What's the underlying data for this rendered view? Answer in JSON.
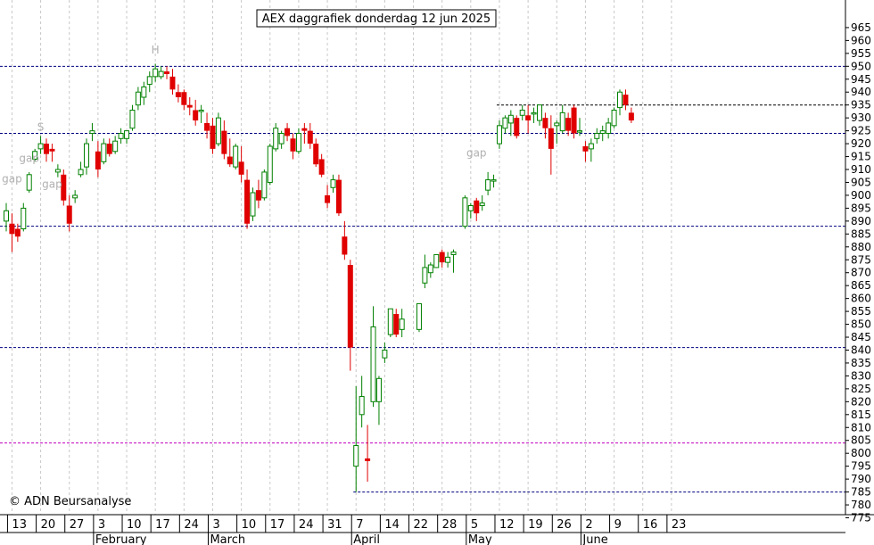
{
  "chart_data": {
    "type": "candlestick",
    "title": "AEX daggrafiek donderdag 12 jun 2025",
    "copyright": "© ADN Beursanalyse",
    "y_axis": {
      "min": 775,
      "max": 965,
      "ticks": [
        965,
        960,
        955,
        950,
        945,
        940,
        935,
        930,
        925,
        920,
        915,
        910,
        905,
        900,
        895,
        890,
        885,
        880,
        875,
        870,
        865,
        860,
        855,
        850,
        845,
        840,
        835,
        830,
        825,
        820,
        815,
        810,
        805,
        800,
        795,
        790,
        785,
        780,
        775
      ],
      "position": "right"
    },
    "x_axis": {
      "day_labels": [
        "13",
        "20",
        "27",
        "3",
        "10",
        "17",
        "24",
        "3",
        "10",
        "17",
        "24",
        "31",
        "7",
        "14",
        "22",
        "28",
        "5",
        "12",
        "19",
        "26",
        "2",
        "9",
        "16",
        "23"
      ],
      "month_labels": [
        "February",
        "March",
        "April",
        "May",
        "June"
      ]
    },
    "grid": "vertical dashed",
    "horizontal_levels": [
      {
        "value": 950,
        "color": "#000080",
        "style": "dashed",
        "span": "full"
      },
      {
        "value": 924,
        "color": "#000080",
        "style": "dashed",
        "span": "full"
      },
      {
        "value": 888,
        "color": "#000080",
        "style": "dashed",
        "span": "full"
      },
      {
        "value": 841,
        "color": "#000080",
        "style": "dashed",
        "span": "full"
      },
      {
        "value": 804,
        "color": "#c000c0",
        "style": "dashed",
        "span": "full"
      },
      {
        "value": 935,
        "color": "#000000",
        "style": "dashed",
        "span": "from 2025-05-12"
      },
      {
        "value": 785,
        "color": "#000080",
        "style": "dashed",
        "span": "from 2025-04-07"
      }
    ],
    "annotations": [
      {
        "text": "gap",
        "date": "2025-01-13",
        "value": 905
      },
      {
        "text": "gap",
        "date": "2025-01-16",
        "value": 913
      },
      {
        "text": "gap",
        "date": "2025-01-22",
        "value": 903
      },
      {
        "text": "S",
        "date": "2025-01-20",
        "value": 925
      },
      {
        "text": "H",
        "date": "2025-02-17",
        "value": 955
      },
      {
        "text": "gap",
        "date": "2025-05-06",
        "value": 915
      }
    ],
    "candles": [
      {
        "date": "2025-01-10",
        "open": 890,
        "high": 897,
        "low": 886,
        "close": 894
      },
      {
        "date": "2025-01-13",
        "open": 889,
        "high": 893,
        "low": 878,
        "close": 885
      },
      {
        "date": "2025-01-14",
        "open": 887,
        "high": 889,
        "low": 882,
        "close": 884
      },
      {
        "date": "2025-01-15",
        "open": 887,
        "high": 897,
        "low": 886,
        "close": 895
      },
      {
        "date": "2025-01-16",
        "open": 902,
        "high": 909,
        "low": 901,
        "close": 908
      },
      {
        "date": "2025-01-17",
        "open": 914,
        "high": 918,
        "low": 913,
        "close": 917
      },
      {
        "date": "2025-01-20",
        "open": 918,
        "high": 923,
        "low": 916,
        "close": 920
      },
      {
        "date": "2025-01-21",
        "open": 920,
        "high": 922,
        "low": 913,
        "close": 916
      },
      {
        "date": "2025-01-22",
        "open": 918,
        "high": 920,
        "low": 913,
        "close": 917
      },
      {
        "date": "2025-01-23",
        "open": 909,
        "high": 912,
        "low": 907,
        "close": 910
      },
      {
        "date": "2025-01-24",
        "open": 908,
        "high": 910,
        "low": 896,
        "close": 898
      },
      {
        "date": "2025-01-27",
        "open": 896,
        "high": 900,
        "low": 886,
        "close": 889
      },
      {
        "date": "2025-01-28",
        "open": 899,
        "high": 902,
        "low": 897,
        "close": 900
      },
      {
        "date": "2025-01-29",
        "open": 908,
        "high": 913,
        "low": 907,
        "close": 910
      },
      {
        "date": "2025-01-30",
        "open": 911,
        "high": 922,
        "low": 908,
        "close": 920
      },
      {
        "date": "2025-01-31",
        "open": 924,
        "high": 928,
        "low": 921,
        "close": 925
      },
      {
        "date": "2025-02-03",
        "open": 917,
        "high": 921,
        "low": 907,
        "close": 910
      },
      {
        "date": "2025-02-04",
        "open": 913,
        "high": 922,
        "low": 912,
        "close": 920
      },
      {
        "date": "2025-02-05",
        "open": 920,
        "high": 922,
        "low": 915,
        "close": 916
      },
      {
        "date": "2025-02-06",
        "open": 917,
        "high": 923,
        "low": 916,
        "close": 921
      },
      {
        "date": "2025-02-07",
        "open": 922,
        "high": 926,
        "low": 920,
        "close": 924
      },
      {
        "date": "2025-02-10",
        "open": 922,
        "high": 925,
        "low": 920,
        "close": 925
      },
      {
        "date": "2025-02-11",
        "open": 926,
        "high": 935,
        "low": 925,
        "close": 933
      },
      {
        "date": "2025-02-12",
        "open": 935,
        "high": 942,
        "low": 933,
        "close": 940
      },
      {
        "date": "2025-02-13",
        "open": 938,
        "high": 944,
        "low": 935,
        "close": 942
      },
      {
        "date": "2025-02-14",
        "open": 943,
        "high": 948,
        "low": 940,
        "close": 946
      },
      {
        "date": "2025-02-17",
        "open": 946,
        "high": 951,
        "low": 944,
        "close": 949
      },
      {
        "date": "2025-02-18",
        "open": 946,
        "high": 950,
        "low": 945,
        "close": 948
      },
      {
        "date": "2025-02-19",
        "open": 948,
        "high": 950,
        "low": 945,
        "close": 947
      },
      {
        "date": "2025-02-20",
        "open": 946,
        "high": 949,
        "low": 939,
        "close": 941
      },
      {
        "date": "2025-02-21",
        "open": 940,
        "high": 943,
        "low": 936,
        "close": 938
      },
      {
        "date": "2025-02-24",
        "open": 940,
        "high": 941,
        "low": 933,
        "close": 935
      },
      {
        "date": "2025-02-25",
        "open": 935,
        "high": 938,
        "low": 931,
        "close": 934
      },
      {
        "date": "2025-02-26",
        "open": 933,
        "high": 937,
        "low": 927,
        "close": 929
      },
      {
        "date": "2025-02-27",
        "open": 933,
        "high": 935,
        "low": 928,
        "close": 933
      },
      {
        "date": "2025-02-28",
        "open": 928,
        "high": 932,
        "low": 922,
        "close": 925
      },
      {
        "date": "2025-03-03",
        "open": 927,
        "high": 930,
        "low": 916,
        "close": 918
      },
      {
        "date": "2025-03-04",
        "open": 920,
        "high": 932,
        "low": 919,
        "close": 930
      },
      {
        "date": "2025-03-05",
        "open": 925,
        "high": 929,
        "low": 914,
        "close": 916
      },
      {
        "date": "2025-03-06",
        "open": 915,
        "high": 922,
        "low": 911,
        "close": 912
      },
      {
        "date": "2025-03-07",
        "open": 911,
        "high": 920,
        "low": 910,
        "close": 919
      },
      {
        "date": "2025-03-10",
        "open": 913,
        "high": 919,
        "low": 905,
        "close": 908
      },
      {
        "date": "2025-03-11",
        "open": 906,
        "high": 910,
        "low": 887,
        "close": 889
      },
      {
        "date": "2025-03-12",
        "open": 892,
        "high": 903,
        "low": 890,
        "close": 901
      },
      {
        "date": "2025-03-13",
        "open": 902,
        "high": 906,
        "low": 895,
        "close": 898
      },
      {
        "date": "2025-03-14",
        "open": 899,
        "high": 910,
        "low": 898,
        "close": 909
      },
      {
        "date": "2025-03-17",
        "open": 905,
        "high": 920,
        "low": 904,
        "close": 919
      },
      {
        "date": "2025-03-18",
        "open": 918,
        "high": 928,
        "low": 917,
        "close": 926
      },
      {
        "date": "2025-03-19",
        "open": 920,
        "high": 925,
        "low": 918,
        "close": 924
      },
      {
        "date": "2025-03-20",
        "open": 926,
        "high": 928,
        "low": 921,
        "close": 923
      },
      {
        "date": "2025-03-21",
        "open": 922,
        "high": 924,
        "low": 914,
        "close": 917
      },
      {
        "date": "2025-03-24",
        "open": 917,
        "high": 926,
        "low": 916,
        "close": 924
      },
      {
        "date": "2025-03-25",
        "open": 926,
        "high": 928,
        "low": 920,
        "close": 925
      },
      {
        "date": "2025-03-26",
        "open": 925,
        "high": 928,
        "low": 918,
        "close": 920
      },
      {
        "date": "2025-03-27",
        "open": 920,
        "high": 922,
        "low": 911,
        "close": 912
      },
      {
        "date": "2025-03-28",
        "open": 914,
        "high": 916,
        "low": 907,
        "close": 908
      },
      {
        "date": "2025-03-31",
        "open": 900,
        "high": 904,
        "low": 895,
        "close": 897
      },
      {
        "date": "2025-04-01",
        "open": 903,
        "high": 908,
        "low": 901,
        "close": 906
      },
      {
        "date": "2025-04-02",
        "open": 906,
        "high": 908,
        "low": 892,
        "close": 893
      },
      {
        "date": "2025-04-03",
        "open": 884,
        "high": 890,
        "low": 875,
        "close": 877
      },
      {
        "date": "2025-04-04",
        "open": 873,
        "high": 875,
        "low": 832,
        "close": 841
      },
      {
        "date": "2025-04-07",
        "open": 795,
        "high": 826,
        "low": 785,
        "close": 803
      },
      {
        "date": "2025-04-08",
        "open": 815,
        "high": 830,
        "low": 810,
        "close": 822
      },
      {
        "date": "2025-04-09",
        "open": 798,
        "high": 811,
        "low": 789,
        "close": 797
      },
      {
        "date": "2025-04-10",
        "open": 820,
        "high": 857,
        "low": 818,
        "close": 849
      },
      {
        "date": "2025-04-11",
        "open": 820,
        "high": 830,
        "low": 811,
        "close": 829
      },
      {
        "date": "2025-04-14",
        "open": 837,
        "high": 843,
        "low": 835,
        "close": 840
      },
      {
        "date": "2025-04-15",
        "open": 846,
        "high": 856,
        "low": 845,
        "close": 856
      },
      {
        "date": "2025-04-16",
        "open": 854,
        "high": 856,
        "low": 845,
        "close": 846
      },
      {
        "date": "2025-04-17",
        "open": 848,
        "high": 856,
        "low": 845,
        "close": 852
      },
      {
        "date": "2025-04-22",
        "open": 848,
        "high": 858,
        "low": 847,
        "close": 858
      },
      {
        "date": "2025-04-23",
        "open": 866,
        "high": 877,
        "low": 864,
        "close": 872
      },
      {
        "date": "2025-04-24",
        "open": 870,
        "high": 874,
        "low": 868,
        "close": 873
      },
      {
        "date": "2025-04-25",
        "open": 872,
        "high": 877,
        "low": 872,
        "close": 877
      },
      {
        "date": "2025-04-28",
        "open": 878,
        "high": 879,
        "low": 872,
        "close": 874
      },
      {
        "date": "2025-04-29",
        "open": 874,
        "high": 878,
        "low": 872,
        "close": 876
      },
      {
        "date": "2025-04-30",
        "open": 877,
        "high": 879,
        "low": 870,
        "close": 878
      },
      {
        "date": "2025-05-02",
        "open": 888,
        "high": 900,
        "low": 887,
        "close": 899
      },
      {
        "date": "2025-05-05",
        "open": 894,
        "high": 897,
        "low": 891,
        "close": 896
      },
      {
        "date": "2025-05-06",
        "open": 898,
        "high": 899,
        "low": 890,
        "close": 893
      },
      {
        "date": "2025-05-07",
        "open": 896,
        "high": 900,
        "low": 894,
        "close": 897
      },
      {
        "date": "2025-05-08",
        "open": 902,
        "high": 909,
        "low": 900,
        "close": 906
      },
      {
        "date": "2025-05-09",
        "open": 906,
        "high": 908,
        "low": 903,
        "close": 906
      },
      {
        "date": "2025-05-12",
        "open": 920,
        "high": 929,
        "low": 918,
        "close": 927
      },
      {
        "date": "2025-05-13",
        "open": 926,
        "high": 931,
        "low": 924,
        "close": 930
      },
      {
        "date": "2025-05-14",
        "open": 928,
        "high": 933,
        "low": 923,
        "close": 931
      },
      {
        "date": "2025-05-15",
        "open": 930,
        "high": 931,
        "low": 922,
        "close": 923
      },
      {
        "date": "2025-05-16",
        "open": 931,
        "high": 935,
        "low": 929,
        "close": 933
      },
      {
        "date": "2025-05-19",
        "open": 931,
        "high": 935,
        "low": 924,
        "close": 929
      },
      {
        "date": "2025-05-20",
        "open": 932,
        "high": 934,
        "low": 928,
        "close": 932
      },
      {
        "date": "2025-05-21",
        "open": 929,
        "high": 934,
        "low": 927,
        "close": 935
      },
      {
        "date": "2025-05-22",
        "open": 930,
        "high": 932,
        "low": 922,
        "close": 926
      },
      {
        "date": "2025-05-23",
        "open": 926,
        "high": 931,
        "low": 908,
        "close": 918
      },
      {
        "date": "2025-05-26",
        "open": 927,
        "high": 929,
        "low": 920,
        "close": 928
      },
      {
        "date": "2025-05-27",
        "open": 925,
        "high": 935,
        "low": 924,
        "close": 932
      },
      {
        "date": "2025-05-28",
        "open": 930,
        "high": 932,
        "low": 923,
        "close": 925
      },
      {
        "date": "2025-05-29",
        "open": 934,
        "high": 935,
        "low": 922,
        "close": 924
      },
      {
        "date": "2025-05-30",
        "open": 925,
        "high": 930,
        "low": 923,
        "close": 925
      },
      {
        "date": "2025-06-02",
        "open": 919,
        "high": 921,
        "low": 913,
        "close": 917
      },
      {
        "date": "2025-06-03",
        "open": 918,
        "high": 922,
        "low": 913,
        "close": 920
      },
      {
        "date": "2025-06-04",
        "open": 922,
        "high": 926,
        "low": 920,
        "close": 924
      },
      {
        "date": "2025-06-05",
        "open": 924,
        "high": 927,
        "low": 921,
        "close": 925
      },
      {
        "date": "2025-06-06",
        "open": 924,
        "high": 930,
        "low": 922,
        "close": 928
      },
      {
        "date": "2025-06-09",
        "open": 927,
        "high": 934,
        "low": 926,
        "close": 933
      },
      {
        "date": "2025-06-10",
        "open": 934,
        "high": 941,
        "low": 931,
        "close": 940
      },
      {
        "date": "2025-06-11",
        "open": 939,
        "high": 941,
        "low": 933,
        "close": 935
      },
      {
        "date": "2025-06-12",
        "open": 932,
        "high": 934,
        "low": 928,
        "close": 929
      }
    ]
  }
}
